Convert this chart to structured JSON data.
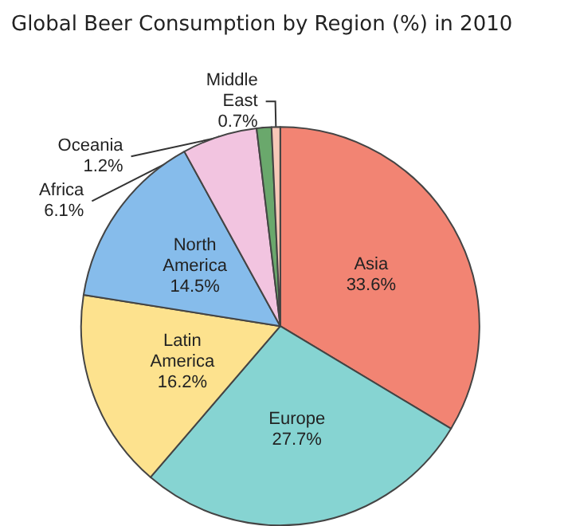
{
  "chart_data": {
    "type": "pie",
    "title": "Global Beer Consumption by Region (%) in 2010",
    "categories": [
      "Asia",
      "Europe",
      "Latin America",
      "North America",
      "Africa",
      "Oceania",
      "Middle East"
    ],
    "values": [
      33.6,
      27.7,
      16.2,
      14.5,
      6.1,
      1.2,
      0.7
    ],
    "colors": [
      "#f28473",
      "#86d4d2",
      "#fde28e",
      "#86bceb",
      "#f2c4e0",
      "#6aa86c",
      "#f8c8b8"
    ],
    "value_labels": [
      "33.6%",
      "27.7%",
      "16.2%",
      "14.5%",
      "6.1%",
      "1.2%",
      "0.7%"
    ]
  }
}
